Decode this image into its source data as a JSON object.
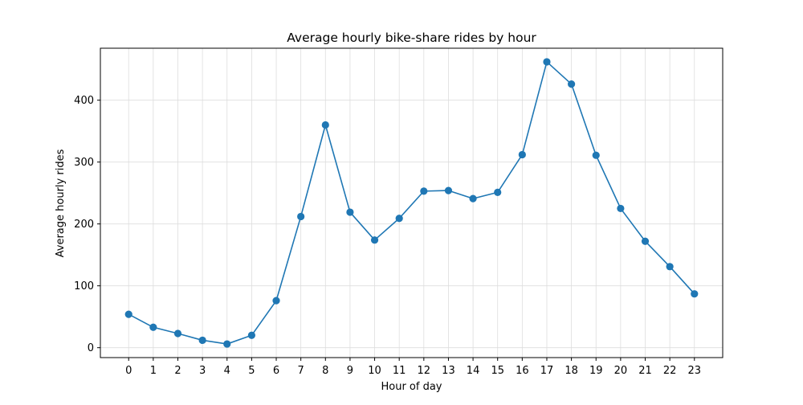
{
  "chart_data": {
    "type": "line",
    "title": "Average hourly bike-share rides by hour",
    "xlabel": "Hour of day",
    "ylabel": "Average hourly rides",
    "x": [
      0,
      1,
      2,
      3,
      4,
      5,
      6,
      7,
      8,
      9,
      10,
      11,
      12,
      13,
      14,
      15,
      16,
      17,
      18,
      19,
      20,
      21,
      22,
      23
    ],
    "x_tick_labels": [
      "0",
      "1",
      "2",
      "3",
      "4",
      "5",
      "6",
      "7",
      "8",
      "9",
      "10",
      "11",
      "12",
      "13",
      "14",
      "15",
      "16",
      "17",
      "18",
      "19",
      "20",
      "21",
      "22",
      "23"
    ],
    "series": [
      {
        "values": [
          54,
          33,
          23,
          12,
          6,
          20,
          76,
          212,
          360,
          219,
          174,
          209,
          253,
          254,
          241,
          251,
          312,
          462,
          426,
          311,
          225,
          172,
          131,
          87
        ]
      }
    ],
    "y_ticks": [
      0,
      100,
      200,
      300,
      400
    ],
    "y_tick_labels": [
      "0",
      "100",
      "200",
      "300",
      "400"
    ],
    "xlim": [
      -1.15,
      24.15
    ],
    "ylim": [
      -16,
      484
    ],
    "grid": true,
    "colors": {
      "line": "#1f77b4",
      "grid": "#dddddd",
      "axes": "#000000"
    }
  }
}
